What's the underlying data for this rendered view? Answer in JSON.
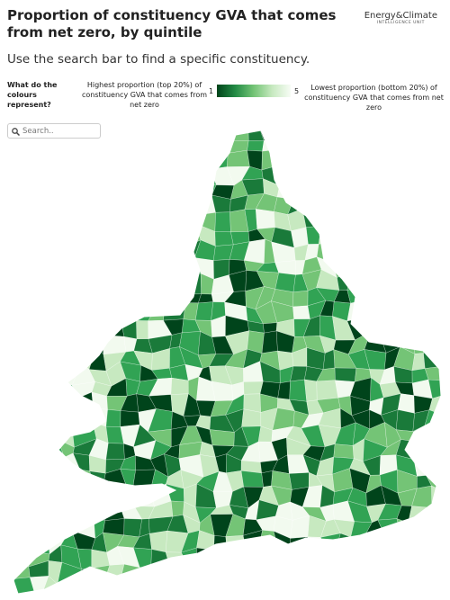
{
  "header": {
    "title": "Proportion of constituency GVA that comes from net zero, by quintile",
    "subtitle": "Use the search bar to find a specific constituency.",
    "logo": {
      "line1": "Energy&Climate",
      "line2": "INTELLIGENCE UNIT"
    }
  },
  "legend": {
    "question": "What do the colours represent?",
    "high_label": "Highest proportion (top 20%) of constituency GVA that comes from net zero",
    "scale_start": "1",
    "scale_end": "5",
    "low_label": "Lowest proportion (bottom 20%) of constituency GVA that comes from net zero"
  },
  "search": {
    "placeholder": "Search.."
  }
}
